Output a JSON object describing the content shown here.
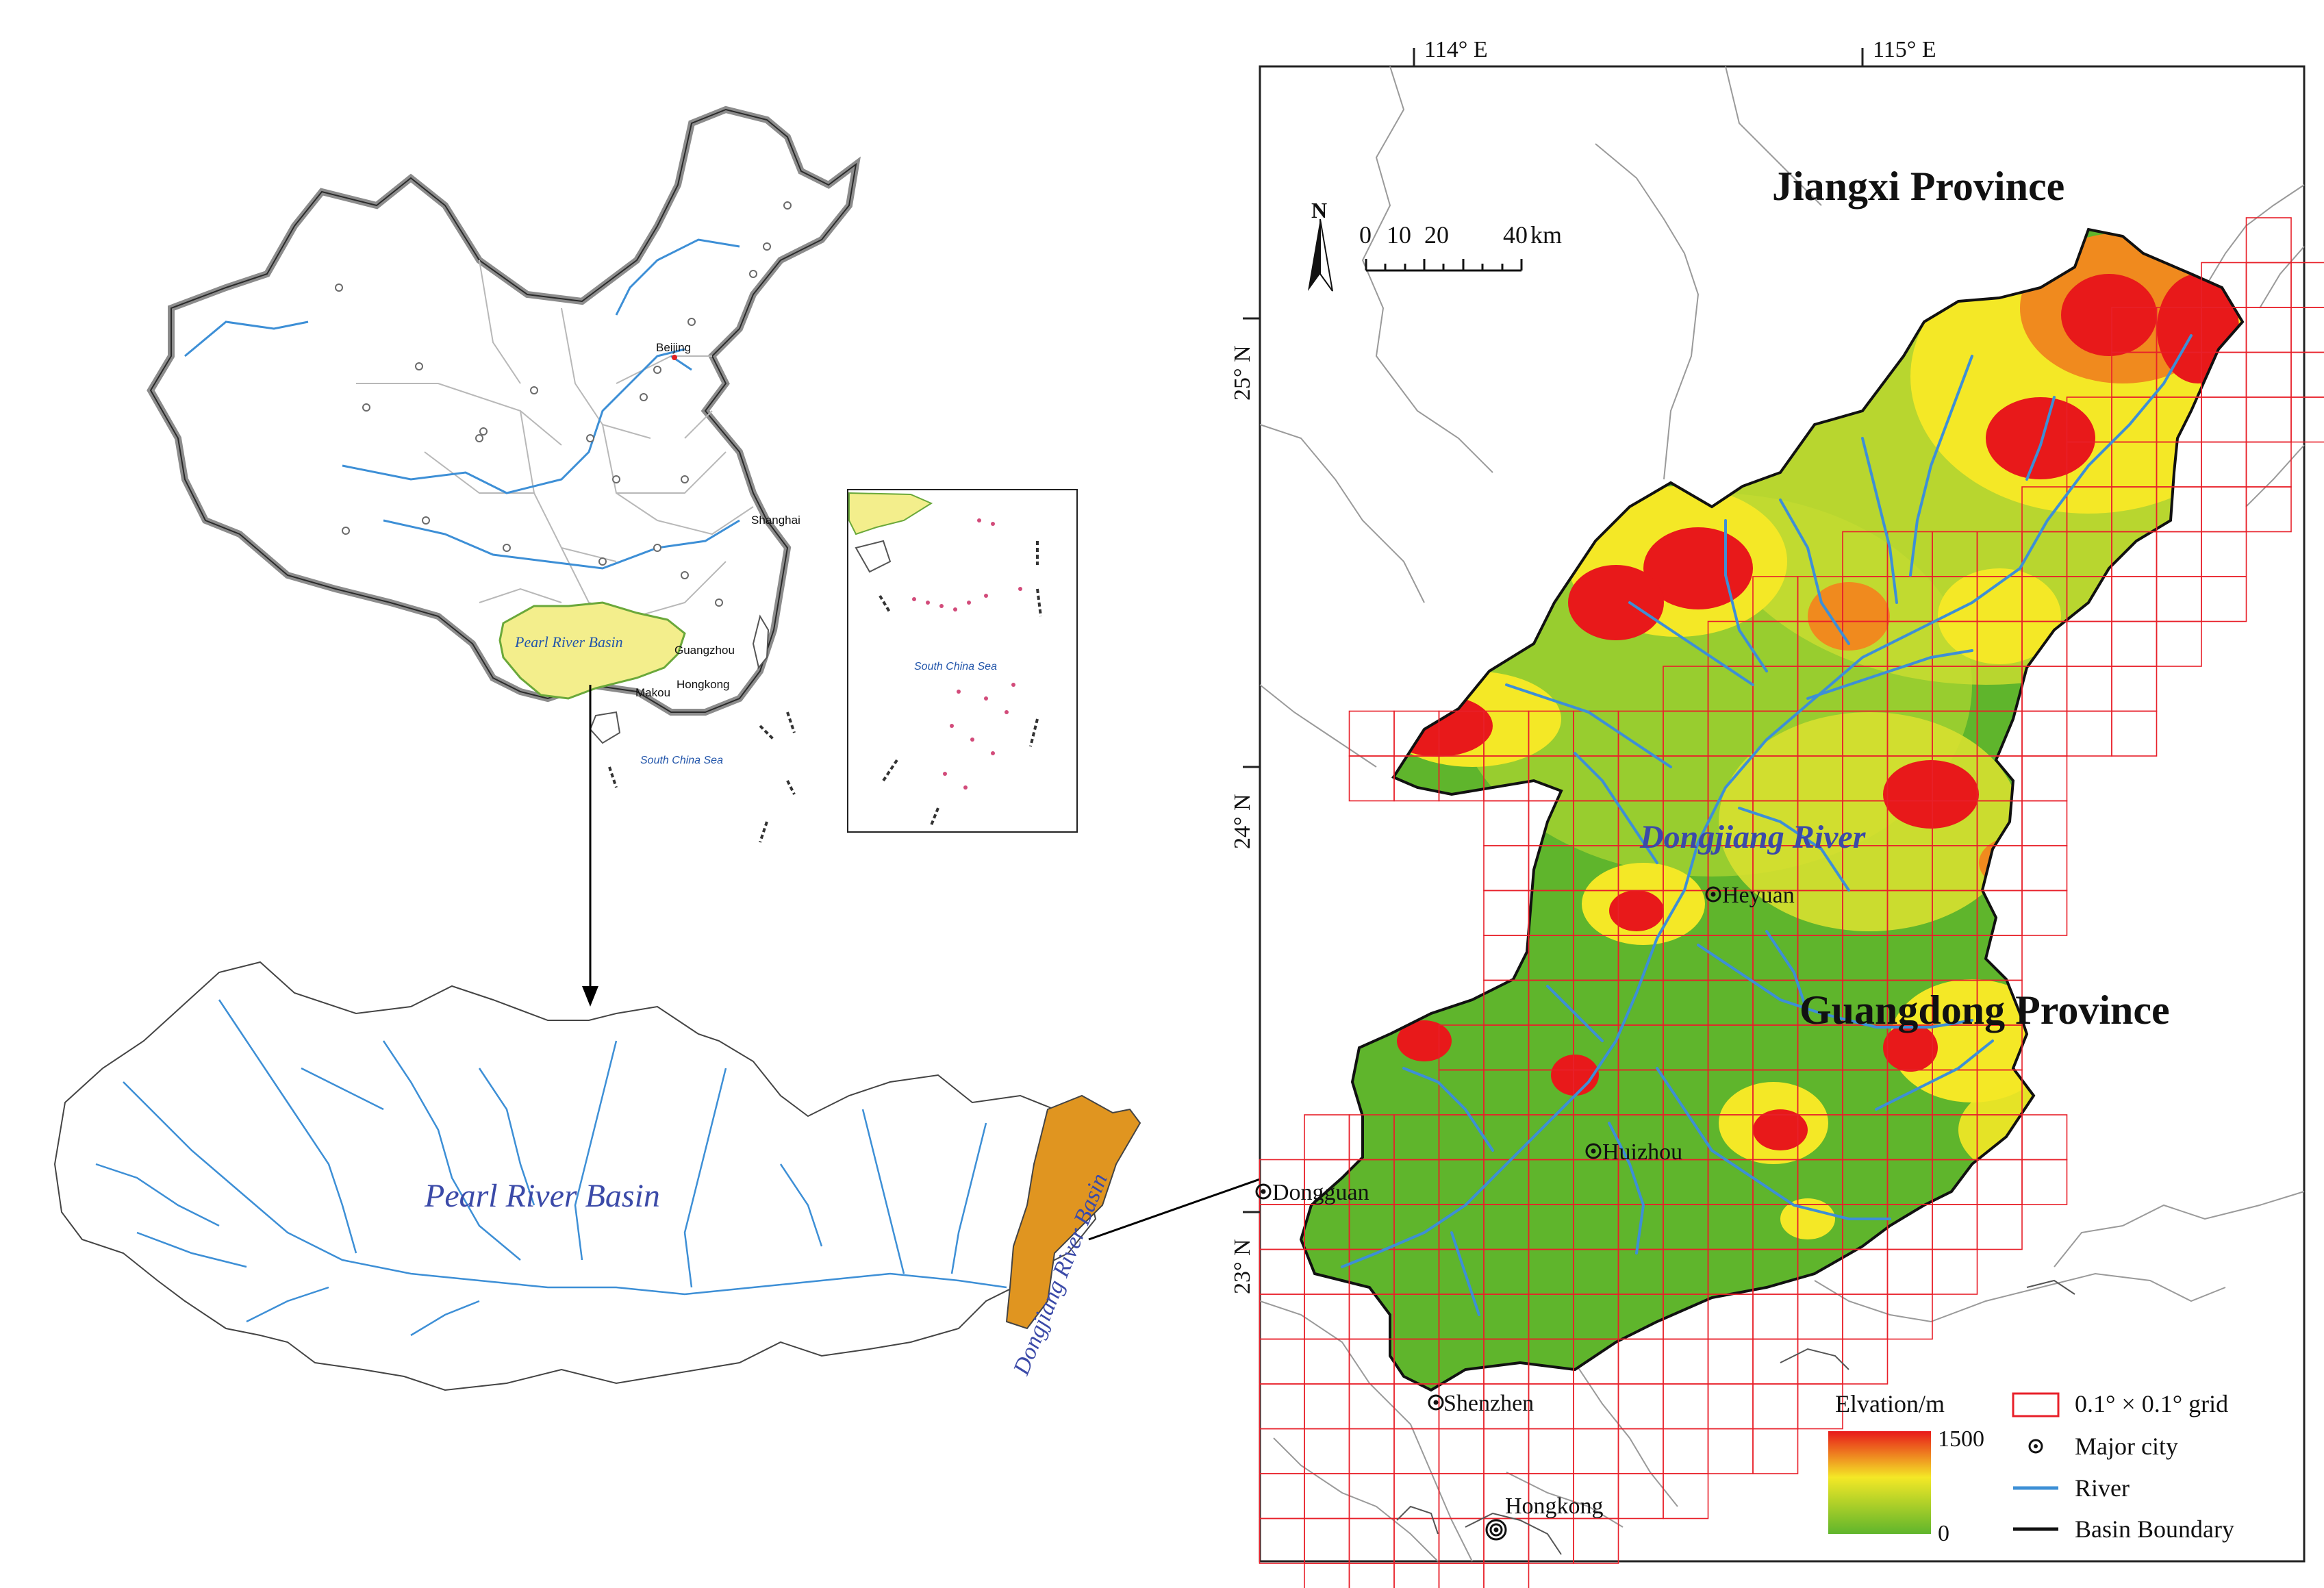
{
  "china_map": {
    "city_labels": [
      "Beijing",
      "Shanghai",
      "Guangzhou",
      "Hongkong",
      "Makou"
    ],
    "basin_label": "Pearl River Basin",
    "sea_label": "South China Sea",
    "inset_sea_label": "South China Sea"
  },
  "pearl_basin_map": {
    "basin_label": "Pearl River Basin",
    "sub_basin_label": "Dongjiang River Basin"
  },
  "detail_map": {
    "longitude_labels": [
      "114° E",
      "115° E"
    ],
    "latitude_labels": [
      "25° N",
      "24° N",
      "23° N"
    ],
    "province_labels": [
      "Jiangxi Province",
      "Guangdong Province"
    ],
    "river_label": "Dongjiang River",
    "cities": [
      "Heyuan",
      "Huizhou",
      "Dongguan",
      "Shenzhen",
      "Hongkong"
    ],
    "north_arrow": "N",
    "scale_bar": {
      "ticks": [
        "0",
        "10",
        "20",
        "40"
      ],
      "unit": "km"
    }
  },
  "legend": {
    "elevation_title": "Elvation/m",
    "elevation_max": "1500",
    "elevation_min": "0",
    "grid": "0.1° × 0.1° grid",
    "major_city": "Major city",
    "river": "River",
    "basin_boundary": "Basin Boundary"
  },
  "colors": {
    "river": "#3d8fd6",
    "grid": "#e8202a",
    "elev_high": "#e8191a",
    "elev_mid": "#f4e826",
    "elev_low": "#5fb52c",
    "pearl_fill": "#f3ee8c",
    "dongjiang_fill": "#e09520",
    "label_blue": "#3b4aa8"
  }
}
